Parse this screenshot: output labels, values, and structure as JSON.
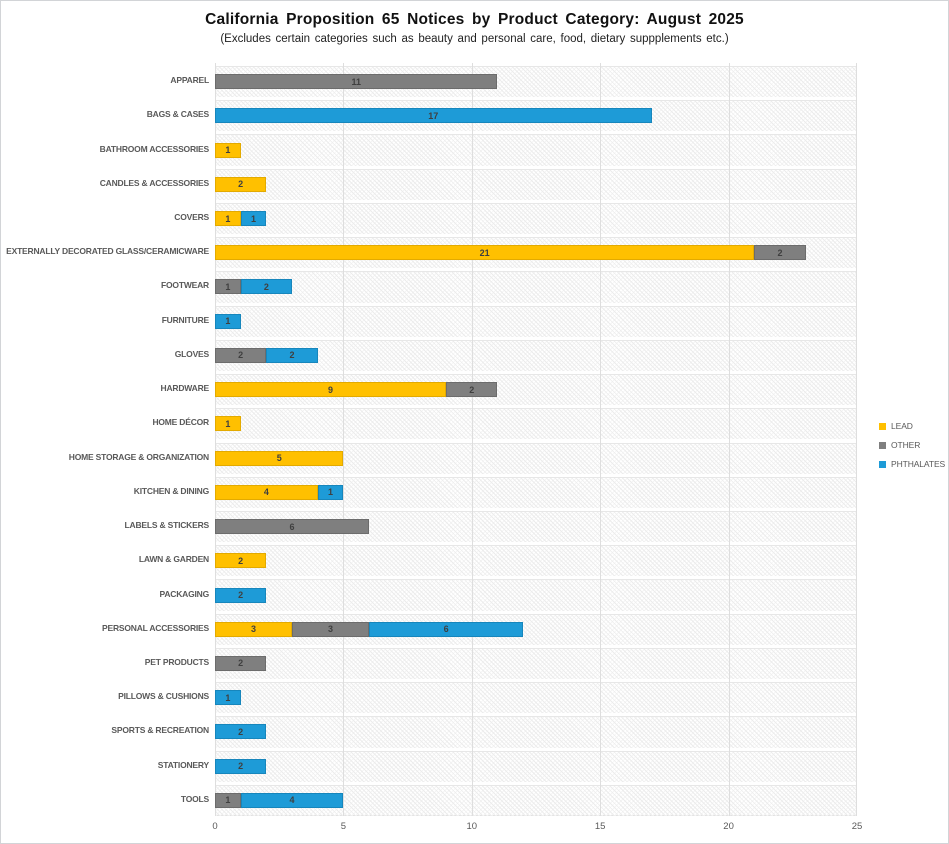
{
  "title": "California Proposition 65 Notices by Product Category: August 2025",
  "subtitle": "(Excludes certain categories such as beauty and personal care, food, dietary suppplements etc.)",
  "colors": {
    "lead": "#FFC000",
    "lead_border": "#E3AA00",
    "other": "#7F7F7F",
    "other_border": "#6C6C6C",
    "phthalates": "#1E9BD7",
    "phthalates_border": "#1786BC",
    "label_text": "#595959",
    "data_label_text": "#3F3F3F",
    "gridline": "#DEDEDE"
  },
  "legend": {
    "position": "right",
    "items": [
      {
        "label": "LEAD",
        "series": "lead"
      },
      {
        "label": "OTHER",
        "series": "other"
      },
      {
        "label": "PHTHALATES",
        "series": "phthalates"
      }
    ]
  },
  "chart_data": {
    "type": "bar",
    "orientation": "horizontal",
    "stacked": true,
    "grid": true,
    "legend_position": "right",
    "xlim": [
      0,
      25
    ],
    "x_ticks": [
      0,
      5,
      10,
      15,
      20,
      25
    ],
    "xlabel": "",
    "ylabel": "",
    "categories": [
      "APPAREL",
      "BAGS & CASES",
      "BATHROOM ACCESSORIES",
      "CANDLES & ACCESSORIES",
      "COVERS",
      "EXTERNALLY DECORATED GLASS/CERAMICWARE",
      "FOOTWEAR",
      "FURNITURE",
      "GLOVES",
      "HARDWARE",
      "HOME DÉCOR",
      "HOME STORAGE & ORGANIZATION",
      "KITCHEN & DINING",
      "LABELS & STICKERS",
      "LAWN & GARDEN",
      "PACKAGING",
      "PERSONAL ACCESSORIES",
      "PET PRODUCTS",
      "PILLOWS & CUSHIONS",
      "SPORTS & RECREATION",
      "STATIONERY",
      "TOOLS"
    ],
    "series": [
      {
        "name": "LEAD",
        "key": "lead",
        "values": [
          0,
          0,
          1,
          2,
          1,
          21,
          0,
          0,
          0,
          9,
          1,
          5,
          4,
          0,
          2,
          0,
          3,
          0,
          0,
          0,
          0,
          0
        ]
      },
      {
        "name": "OTHER",
        "key": "other",
        "values": [
          11,
          0,
          0,
          0,
          0,
          2,
          1,
          0,
          2,
          2,
          0,
          0,
          0,
          6,
          0,
          0,
          3,
          2,
          0,
          0,
          0,
          1
        ]
      },
      {
        "name": "PHTHALATES",
        "key": "phthalates",
        "values": [
          0,
          17,
          0,
          0,
          1,
          0,
          2,
          1,
          2,
          0,
          0,
          0,
          1,
          0,
          0,
          2,
          6,
          0,
          1,
          2,
          2,
          4
        ]
      }
    ]
  }
}
